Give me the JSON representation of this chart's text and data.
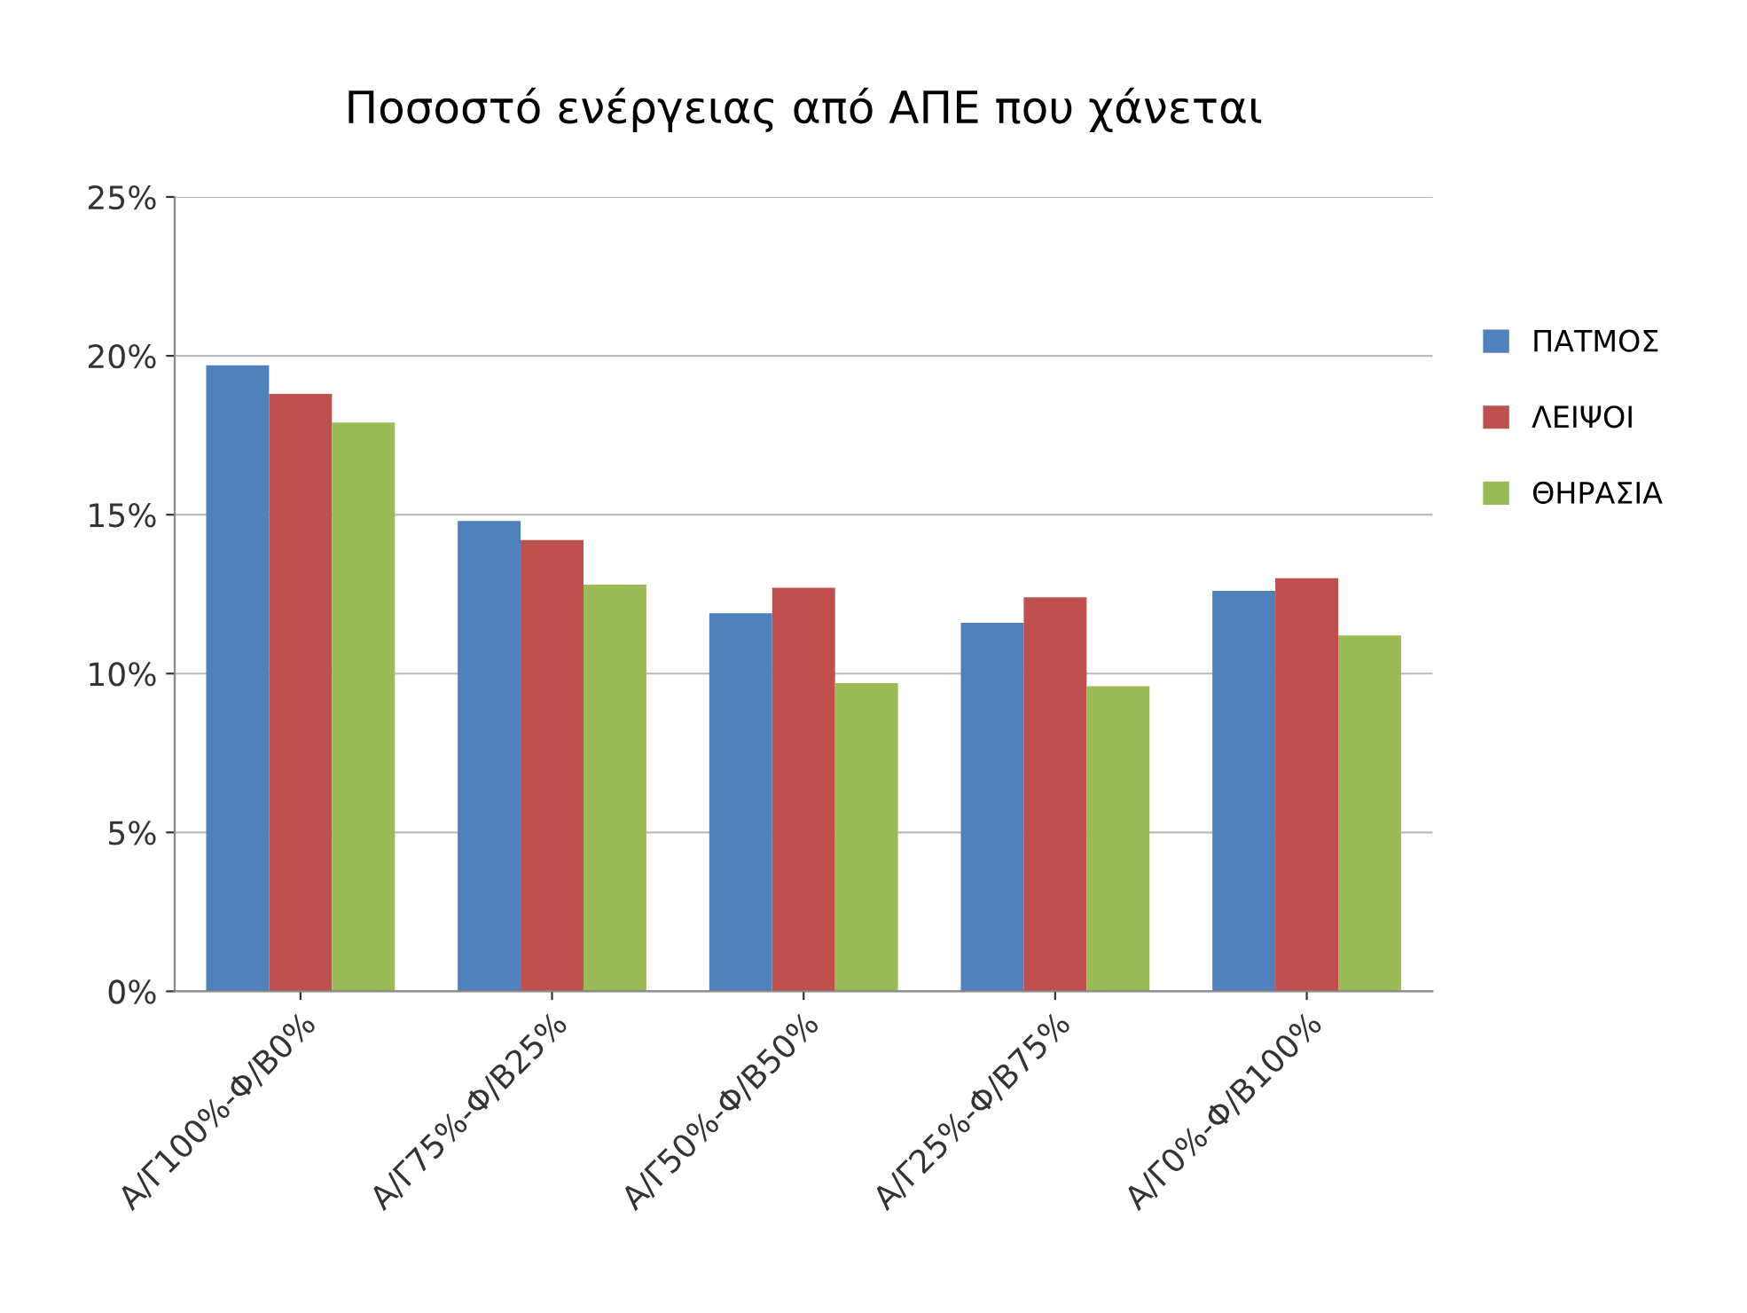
{
  "chart_data": {
    "type": "bar",
    "title": "Ποσοστό ενέργειας από ΑΠΕ που χάνεται",
    "categories": [
      "Α/Γ100%-Φ/Β0%",
      "Α/Γ75%-Φ/Β25%",
      "Α/Γ50%-Φ/Β50%",
      "Α/Γ25%-Φ/Β75%",
      "Α/Γ0%-Φ/Β100%"
    ],
    "series": [
      {
        "name": "ΠΑΤΜΟΣ",
        "color": "#4f81bd",
        "values": [
          19.7,
          14.8,
          11.9,
          11.6,
          12.6
        ]
      },
      {
        "name": "ΛΕΙΨΟΙ",
        "color": "#c0504d",
        "values": [
          18.8,
          14.2,
          12.7,
          12.4,
          13.0
        ]
      },
      {
        "name": "ΘΗΡΑΣΙΑ",
        "color": "#9bbb59",
        "values": [
          17.9,
          12.8,
          9.7,
          9.6,
          11.2
        ]
      }
    ],
    "ylim": [
      0,
      25
    ],
    "yticks": [
      {
        "value": 0,
        "label": "0%"
      },
      {
        "value": 5,
        "label": "5%"
      },
      {
        "value": 10,
        "label": "10%"
      },
      {
        "value": 15,
        "label": "15%"
      },
      {
        "value": 20,
        "label": "20%"
      },
      {
        "value": 25,
        "label": "25%"
      }
    ],
    "grid": "y",
    "legend": "right"
  }
}
